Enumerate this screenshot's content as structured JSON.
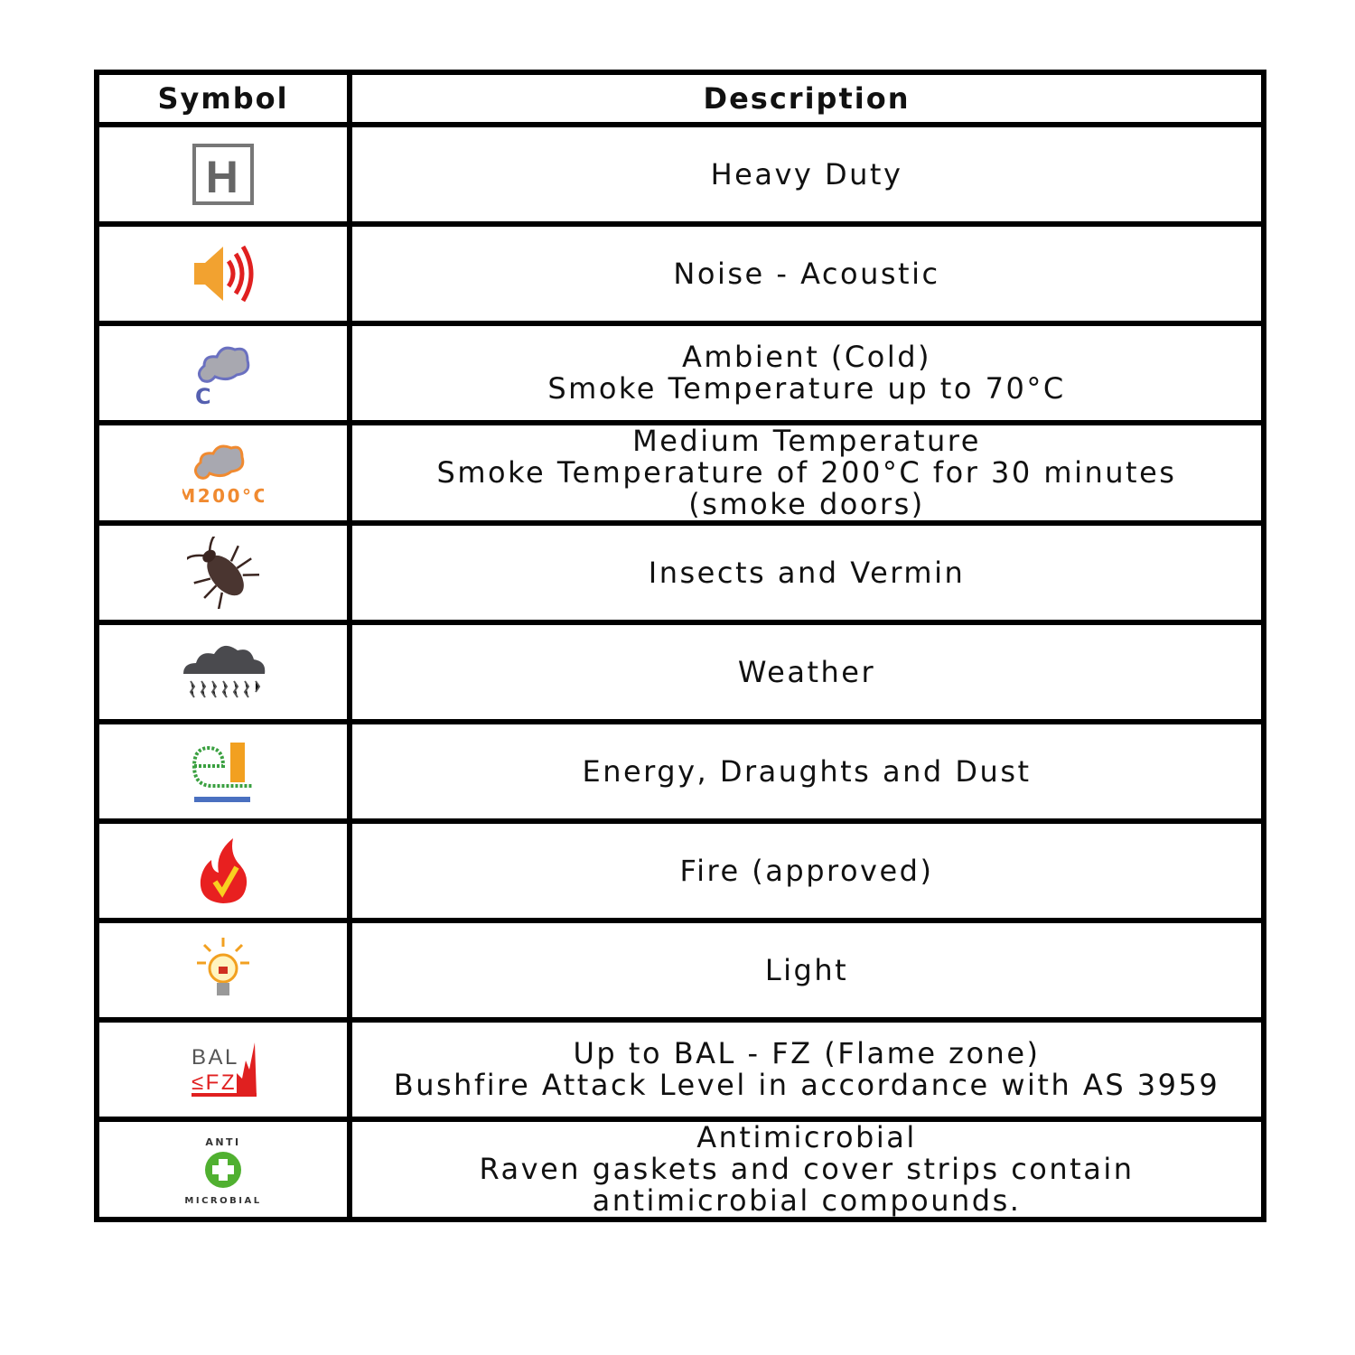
{
  "headers": {
    "symbol": "Symbol",
    "description": "Description"
  },
  "rows": [
    {
      "icon": "heavy-duty-icon",
      "lines": [
        "Heavy Duty"
      ]
    },
    {
      "icon": "speaker-sound-icon",
      "lines": [
        "Noise - Acoustic"
      ]
    },
    {
      "icon": "cold-smoke-icon",
      "icon_text": "C",
      "lines": [
        "Ambient (Cold)",
        "Smoke Temperature up to 70°C"
      ]
    },
    {
      "icon": "medium-smoke-icon",
      "icon_text": "M200°C",
      "lines": [
        "Medium Temperature",
        "Smoke Temperature of 200°C for 30 minutes",
        "(smoke doors)"
      ]
    },
    {
      "icon": "cockroach-icon",
      "lines": [
        "Insects and Vermin"
      ]
    },
    {
      "icon": "rain-cloud-icon",
      "lines": [
        "Weather"
      ]
    },
    {
      "icon": "energy-seal-icon",
      "lines": [
        "Energy, Draughts and Dust"
      ]
    },
    {
      "icon": "fire-check-icon",
      "lines": [
        "Fire (approved)"
      ]
    },
    {
      "icon": "light-bulb-icon",
      "lines": [
        "Light"
      ]
    },
    {
      "icon": "bal-fz-icon",
      "icon_text": "BAL ≤FZ",
      "lines": [
        "Up to BAL - FZ (Flame zone)",
        "Bushfire Attack Level in accordance with AS 3959"
      ]
    },
    {
      "icon": "antimicrobial-icon",
      "icon_text": "ANTI MICROBIAL",
      "lines": [
        "Antimicrobial",
        "Raven gaskets and cover strips contain",
        "antimicrobial compounds."
      ]
    }
  ]
}
